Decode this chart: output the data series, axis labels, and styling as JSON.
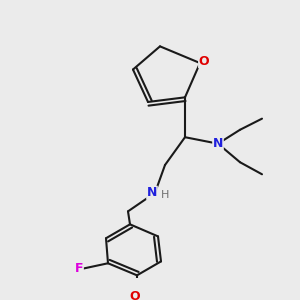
{
  "background_color": "#ebebeb",
  "bond_color": "#1a1a1a",
  "atom_colors": {
    "O": "#e00000",
    "N": "#2020dd",
    "F": "#dd00dd",
    "H": "#707070",
    "C": "#1a1a1a"
  },
  "figsize": [
    3.0,
    3.0
  ],
  "dpi": 100,
  "lw": 1.5
}
